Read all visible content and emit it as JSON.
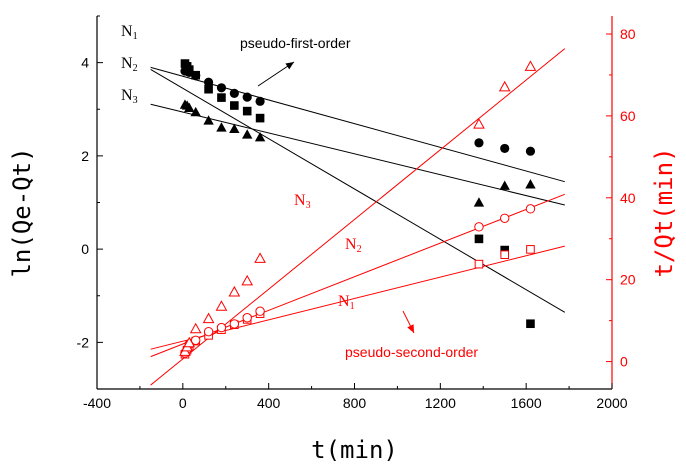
{
  "chart_data": {
    "type": "scatter",
    "x": {
      "label": "t(min)",
      "lim": [
        -400,
        2000
      ],
      "ticks": [
        "-400",
        "0",
        "400",
        "800",
        "1200",
        "1600",
        "2000"
      ]
    },
    "y_left": {
      "label": "ln(Qe-Qt)",
      "lim": [
        -3,
        5
      ],
      "ticks": [
        "-2",
        "0",
        "2",
        "4"
      ],
      "color": "#000000"
    },
    "y_right": {
      "label": "t/Qt(min)",
      "lim": [
        -6.7,
        84.4
      ],
      "ticks": [
        "0",
        "20",
        "40",
        "60",
        "80"
      ],
      "color": "#ff0000"
    },
    "series": [
      {
        "name": "N1",
        "group": "pseudo-first-order",
        "axis": "left",
        "marker": "circle-filled",
        "color": "#000000",
        "points": [
          [
            10,
            3.82
          ],
          [
            30,
            3.79
          ],
          [
            60,
            3.72
          ],
          [
            120,
            3.58
          ],
          [
            180,
            3.46
          ],
          [
            240,
            3.34
          ],
          [
            300,
            3.26
          ],
          [
            360,
            3.17
          ],
          [
            1380,
            2.28
          ],
          [
            1500,
            2.16
          ],
          [
            1620,
            2.1
          ]
        ],
        "fit": {
          "slope": -0.00127,
          "intercept": 3.707
        }
      },
      {
        "name": "N2",
        "group": "pseudo-first-order",
        "axis": "left",
        "marker": "square-filled",
        "color": "#000000",
        "points": [
          [
            10,
            3.98
          ],
          [
            20,
            3.92
          ],
          [
            30,
            3.85
          ],
          [
            60,
            3.73
          ],
          [
            120,
            3.43
          ],
          [
            180,
            3.25
          ],
          [
            240,
            3.08
          ],
          [
            300,
            2.96
          ],
          [
            360,
            2.81
          ],
          [
            1380,
            0.22
          ],
          [
            1500,
            -0.02
          ],
          [
            1620,
            -1.6
          ]
        ],
        "fit": {
          "slope": -0.0027,
          "intercept": 3.45
        }
      },
      {
        "name": "N3",
        "group": "pseudo-first-order",
        "axis": "left",
        "marker": "triangle-filled",
        "color": "#000000",
        "points": [
          [
            10,
            3.1
          ],
          [
            20,
            3.08
          ],
          [
            30,
            3.03
          ],
          [
            60,
            2.94
          ],
          [
            120,
            2.76
          ],
          [
            180,
            2.61
          ],
          [
            240,
            2.58
          ],
          [
            300,
            2.46
          ],
          [
            360,
            2.4
          ],
          [
            1380,
            1.0
          ],
          [
            1500,
            1.36
          ],
          [
            1620,
            1.39
          ]
        ],
        "fit": {
          "slope": -0.00112,
          "intercept": 2.94
        }
      },
      {
        "name": "N1",
        "group": "pseudo-second-order",
        "axis": "right",
        "marker": "square-open",
        "color": "#ff0000",
        "points": [
          [
            10,
            1.8
          ],
          [
            20,
            2.8
          ],
          [
            30,
            3.8
          ],
          [
            60,
            5.0
          ],
          [
            120,
            6.4
          ],
          [
            180,
            7.8
          ],
          [
            240,
            9.0
          ],
          [
            300,
            10.3
          ],
          [
            360,
            11.7
          ],
          [
            1380,
            23.8
          ],
          [
            1500,
            26.1
          ],
          [
            1620,
            27.4
          ]
        ],
        "fit": {
          "slope": 0.01304,
          "intercept": 4.98
        }
      },
      {
        "name": "N2",
        "group": "pseudo-second-order",
        "axis": "right",
        "marker": "circle-open",
        "color": "#ff0000",
        "points": [
          [
            10,
            2.1
          ],
          [
            20,
            3.0
          ],
          [
            30,
            4.2
          ],
          [
            60,
            5.2
          ],
          [
            120,
            7.3
          ],
          [
            180,
            8.3
          ],
          [
            240,
            9.2
          ],
          [
            300,
            10.7
          ],
          [
            360,
            12.3
          ],
          [
            1380,
            32.9
          ],
          [
            1500,
            35.0
          ],
          [
            1620,
            37.3
          ]
        ],
        "fit": {
          "slope": 0.02054,
          "intercept": 4.29
        }
      },
      {
        "name": "N3",
        "group": "pseudo-second-order",
        "axis": "right",
        "marker": "triangle-open",
        "color": "#ff0000",
        "points": [
          [
            10,
            2.5
          ],
          [
            20,
            3.6
          ],
          [
            30,
            4.6
          ],
          [
            60,
            8.0
          ],
          [
            120,
            10.5
          ],
          [
            180,
            13.5
          ],
          [
            240,
            17.0
          ],
          [
            300,
            19.7
          ],
          [
            360,
            25.2
          ],
          [
            1380,
            58.0
          ],
          [
            1500,
            67.1
          ],
          [
            1620,
            72.1
          ]
        ],
        "fit": {
          "slope": 0.04257,
          "intercept": 0.65
        }
      }
    ],
    "annotations": [
      {
        "text": "pseudo-first-order",
        "color": "#000000"
      },
      {
        "text": "pseudo-second-order",
        "color": "#ff0000"
      },
      {
        "text": "N",
        "sub": "1",
        "color": "#000000",
        "target": "N1 pseudo-first-order"
      },
      {
        "text": "N",
        "sub": "2",
        "color": "#000000",
        "target": "N2 pseudo-first-order"
      },
      {
        "text": "N",
        "sub": "3",
        "color": "#000000",
        "target": "N3 pseudo-first-order"
      },
      {
        "text": "N",
        "sub": "3",
        "color": "#ff0000",
        "target": "N3 pseudo-second-order"
      },
      {
        "text": "N",
        "sub": "2",
        "color": "#ff0000",
        "target": "N2 pseudo-second-order"
      },
      {
        "text": "N",
        "sub": "1",
        "color": "#ff0000",
        "target": "N1 pseudo-second-order"
      }
    ],
    "grid": false,
    "legend": "none"
  }
}
